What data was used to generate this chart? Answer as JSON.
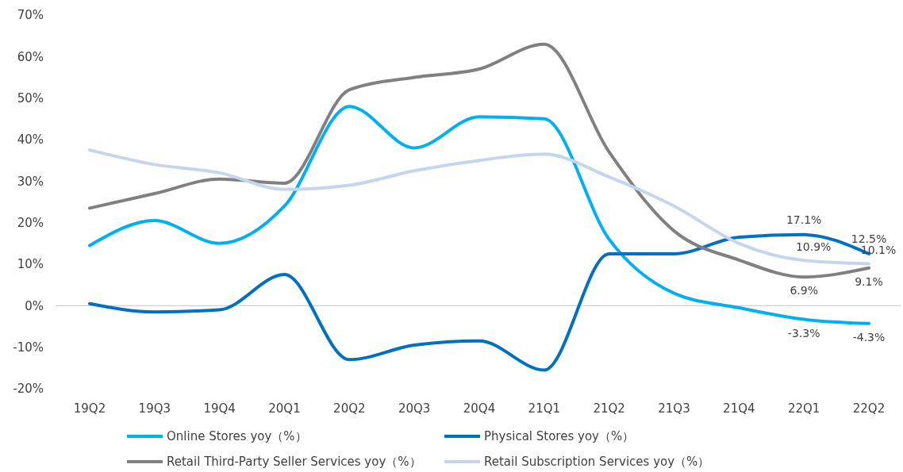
{
  "chart_data": {
    "type": "line",
    "categories": [
      "19Q2",
      "19Q3",
      "19Q4",
      "20Q1",
      "20Q2",
      "20Q3",
      "20Q4",
      "21Q1",
      "21Q2",
      "21Q3",
      "21Q4",
      "22Q1",
      "22Q2"
    ],
    "ylim": [
      -20,
      70
    ],
    "yticks": [
      {
        "value": -20,
        "label": "-20%"
      },
      {
        "value": -10,
        "label": "-10%"
      },
      {
        "value": 0,
        "label": "0%"
      },
      {
        "value": 10,
        "label": "10%"
      },
      {
        "value": 20,
        "label": "20%"
      },
      {
        "value": 30,
        "label": "30%"
      },
      {
        "value": 40,
        "label": "40%"
      },
      {
        "value": 50,
        "label": "50%"
      },
      {
        "value": 60,
        "label": "60%"
      },
      {
        "value": 70,
        "label": "70%"
      }
    ],
    "legend": "bottom",
    "marker": "none",
    "line_style": "solid",
    "series": [
      {
        "name": "Online Stores yoy（%）",
        "color": "#00b0f0",
        "values": [
          14.5,
          20.5,
          15,
          24,
          48,
          38,
          45.5,
          45,
          16,
          3,
          -0.5,
          -3.3,
          -4.3
        ],
        "value_labels": [
          null,
          null,
          null,
          null,
          null,
          null,
          null,
          null,
          null,
          null,
          null,
          "-3.3%",
          "-4.3%"
        ]
      },
      {
        "name": "Physical Stores yoy（%）",
        "color": "#0070c0",
        "values": [
          0.5,
          -1.5,
          -1,
          7.5,
          -13,
          -9.5,
          -8.5,
          -15.5,
          12.5,
          12.5,
          16.5,
          17.1,
          12.5
        ],
        "value_labels": [
          null,
          null,
          null,
          null,
          null,
          null,
          null,
          null,
          null,
          null,
          null,
          "17.1%",
          "12.5%"
        ]
      },
      {
        "name": "Retail Third-Party Seller Services yoy（%）",
        "color": "#808080",
        "values": [
          23.5,
          27,
          30.5,
          29.5,
          52,
          55,
          57,
          63,
          37,
          18,
          11,
          6.9,
          9.1
        ],
        "value_labels": [
          null,
          null,
          null,
          null,
          null,
          null,
          null,
          null,
          null,
          null,
          null,
          "6.9%",
          "9.1%"
        ]
      },
      {
        "name": "Retail Subscription Services yoy（%）",
        "color": "#c5d5ee",
        "values": [
          37.5,
          34,
          32,
          28,
          29,
          32.5,
          35,
          36.5,
          31,
          24,
          15,
          10.9,
          10.1
        ],
        "value_labels": [
          null,
          null,
          null,
          null,
          null,
          null,
          null,
          null,
          null,
          null,
          null,
          "10.9%",
          "10.1%"
        ]
      }
    ]
  }
}
